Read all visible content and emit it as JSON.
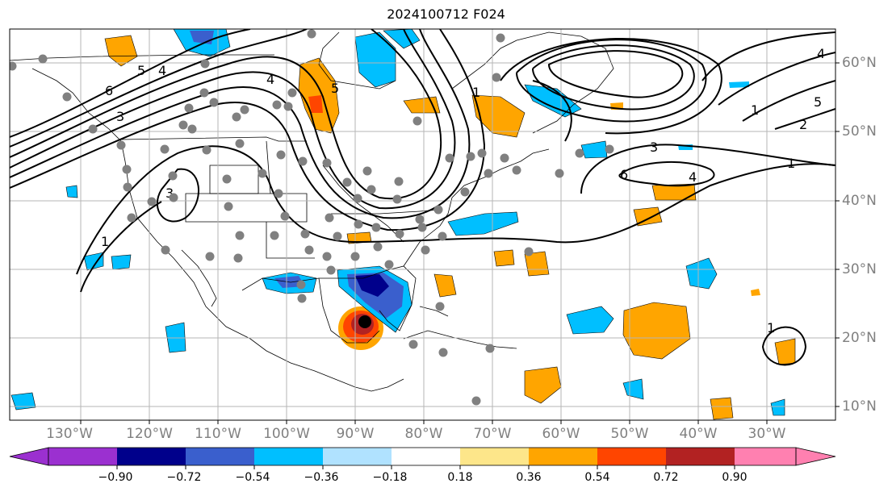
{
  "title": "2024100712 F024",
  "longitude_labels": [
    "130°W",
    "120°W",
    "110°W",
    "100°W",
    "90°W",
    "80°W",
    "70°W",
    "60°W",
    "50°W",
    "40°W",
    "30°W"
  ],
  "latitude_labels": [
    "60°N",
    "50°N",
    "40°N",
    "30°N",
    "20°N",
    "10°N"
  ],
  "contour_labels": [
    "4",
    "5",
    "6",
    "3",
    "1",
    "5",
    "4",
    "3",
    "1",
    "3",
    "4",
    "1",
    "1",
    "6",
    "4",
    "5",
    "2",
    "1"
  ],
  "colorbar": {
    "ticks": [
      "−0.90",
      "−0.72",
      "−0.54",
      "−0.36",
      "−0.18",
      "0.18",
      "0.36",
      "0.54",
      "0.72",
      "0.90"
    ],
    "colors": [
      "#9b30d0",
      "#00008b",
      "#3a5fcd",
      "#00bfff",
      "#b0e2ff",
      "#ffffff",
      "#fde68a",
      "#ffa500",
      "#ff4500",
      "#b22222",
      "#ff80b0"
    ]
  },
  "shading_colors": {
    "strong_negative": "#00008b",
    "negative": "#3a5fcd",
    "moderate_negative": "#00bfff",
    "moderate_positive": "#ffa500",
    "positive": "#ff4500",
    "strong_positive": "#b22222"
  }
}
